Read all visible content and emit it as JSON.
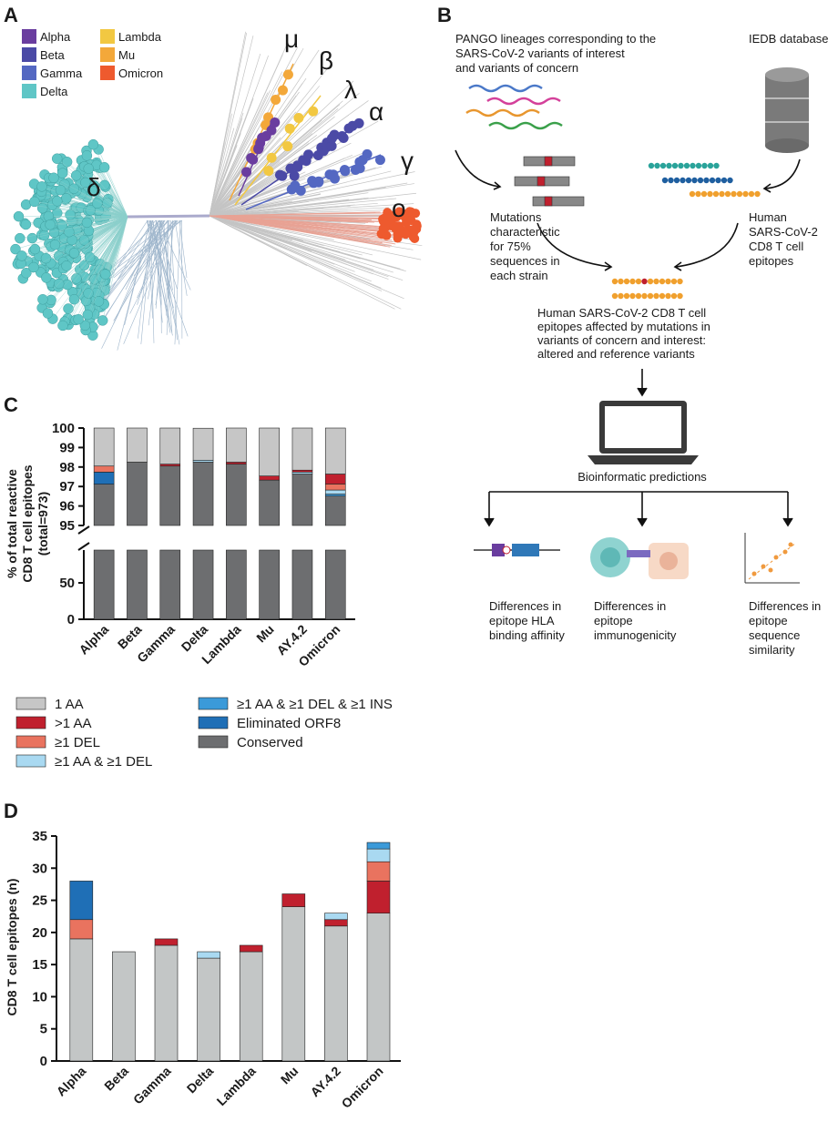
{
  "panel_a": {
    "label": "A",
    "legend": [
      {
        "name": "Alpha",
        "color": "#6a3d9f"
      },
      {
        "name": "Beta",
        "color": "#4b4aa6"
      },
      {
        "name": "Gamma",
        "color": "#5468c2"
      },
      {
        "name": "Delta",
        "color": "#5fc6c6"
      },
      {
        "name": "Lambda",
        "color": "#f2c842"
      },
      {
        "name": "Mu",
        "color": "#f3a83a"
      },
      {
        "name": "Omicron",
        "color": "#ee5a2e"
      }
    ],
    "clade_labels": [
      "μ",
      "β",
      "λ",
      "α",
      "γ",
      "δ",
      "ο"
    ]
  },
  "panel_b": {
    "label": "B",
    "pango": [
      "PANGO lineages corresponding to the",
      "SARS-CoV-2 variants of interest",
      "and variants of concern"
    ],
    "iedb": "IEDB database",
    "mutations": [
      "Mutations",
      "characteristic",
      "for 75%",
      "sequences in",
      "each strain"
    ],
    "epitopes": [
      "Human",
      "SARS-CoV-2",
      "CD8 T cell",
      "epitopes"
    ],
    "affected": [
      "Human SARS-CoV-2 CD8 T cell",
      "epitopes affected by mutations in",
      "variants of concern and interest:",
      "altered and reference variants"
    ],
    "predictions": "Bioinformatic predictions",
    "outputs": [
      [
        "Differences in",
        "epitope HLA",
        "binding affinity"
      ],
      [
        "Differences in",
        "epitope",
        "immunogenicity"
      ],
      [
        "Differences in",
        "epitope",
        "sequence",
        "similarity"
      ]
    ]
  },
  "chart_data": [
    {
      "type": "stacked_bar_broken_axis",
      "panel_label": "C",
      "y_label": [
        "% of total reactive",
        "CD8 T cell epitopes",
        "(total=973)"
      ],
      "categories": [
        "Alpha",
        "Beta",
        "Gamma",
        "Delta",
        "Lambda",
        "Mu",
        "AY.4.2",
        "Omicron"
      ],
      "y_segments": [
        {
          "ylim": [
            0,
            95
          ],
          "yticks": [
            0,
            50
          ]
        },
        {
          "ylim": [
            95,
            100
          ],
          "yticks": [
            95,
            96,
            97,
            98,
            99,
            100
          ]
        }
      ],
      "series": [
        {
          "name": "1 AA",
          "color": "#c6c6c6",
          "values": [
            1.95,
            1.75,
            1.85,
            1.64,
            1.75,
            2.47,
            2.16,
            2.36
          ]
        },
        {
          "name": ">1 AA",
          "color": "#c0202e",
          "values": [
            0,
            0,
            0.1,
            0,
            0.1,
            0.21,
            0.1,
            0.51
          ]
        },
        {
          "name": "≥1 DEL",
          "color": "#e9735f",
          "values": [
            0.31,
            0,
            0,
            0,
            0,
            0,
            0,
            0.31
          ]
        },
        {
          "name": "≥1 AA & ≥1 DEL",
          "color": "#a9d9f1",
          "values": [
            0,
            0,
            0,
            0.1,
            0,
            0,
            0.1,
            0.21
          ]
        },
        {
          "name": "≥1 AA & ≥1 DEL & ≥1 INS",
          "color": "#3b9ad9",
          "values": [
            0,
            0,
            0,
            0,
            0,
            0,
            0,
            0.1
          ]
        },
        {
          "name": "Eliminated ORF8",
          "color": "#1f6fb6",
          "values": [
            0.62,
            0,
            0,
            0,
            0,
            0,
            0,
            0
          ]
        },
        {
          "name": "Conserved",
          "color": "#6d6e70",
          "values": [
            97.12,
            98.25,
            98.05,
            98.25,
            98.15,
            97.33,
            97.64,
            96.51
          ]
        }
      ]
    },
    {
      "type": "stacked_bar",
      "panel_label": "D",
      "y_label": "CD8 T cell epitopes (n)",
      "categories": [
        "Alpha",
        "Beta",
        "Gamma",
        "Delta",
        "Lambda",
        "Mu",
        "AY.4.2",
        "Omicron"
      ],
      "ylim": [
        0,
        35
      ],
      "yticks": [
        0,
        5,
        10,
        15,
        20,
        25,
        30,
        35
      ],
      "series": [
        {
          "color": "#c3c6c6",
          "values": [
            19,
            17,
            18,
            16,
            17,
            24,
            21,
            23
          ]
        },
        {
          "color": "#c0202e",
          "values": [
            0,
            0,
            1,
            0,
            1,
            2,
            1,
            5
          ]
        },
        {
          "color": "#e9735f",
          "values": [
            3,
            0,
            0,
            0,
            0,
            0,
            0,
            3
          ]
        },
        {
          "color": "#a9d9f1",
          "values": [
            0,
            0,
            0,
            1,
            0,
            0,
            1,
            2
          ]
        },
        {
          "color": "#3b9ad9",
          "values": [
            0,
            0,
            0,
            0,
            0,
            0,
            0,
            1
          ]
        },
        {
          "color": "#1f6fb6",
          "values": [
            6,
            0,
            0,
            0,
            0,
            0,
            0,
            0
          ]
        }
      ]
    }
  ]
}
